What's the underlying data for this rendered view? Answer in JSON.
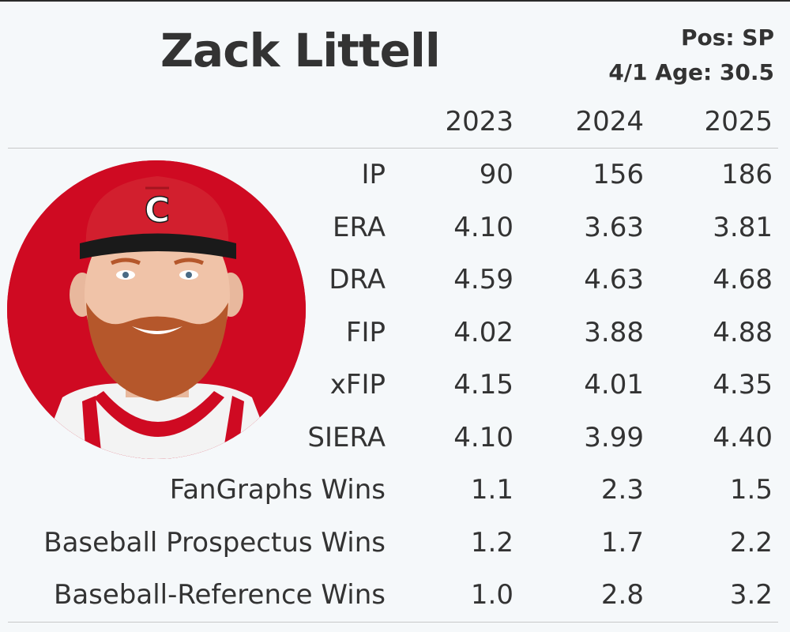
{
  "player": {
    "name": "Zack Littell",
    "position": "Pos: SP",
    "age": "4/1 Age: 30.5"
  },
  "colors": {
    "photo_background": "#cf0a22",
    "cap": "#d21f2e",
    "text": "#333333",
    "page_background": "#f5f8fa"
  },
  "table": {
    "years": [
      "2023",
      "2024",
      "2025"
    ],
    "rows": [
      {
        "label": "IP",
        "values": [
          "90",
          "156",
          "186"
        ]
      },
      {
        "label": "ERA",
        "values": [
          "4.10",
          "3.63",
          "3.81"
        ]
      },
      {
        "label": "DRA",
        "values": [
          "4.59",
          "4.63",
          "4.68"
        ]
      },
      {
        "label": "FIP",
        "values": [
          "4.02",
          "3.88",
          "4.88"
        ]
      },
      {
        "label": "xFIP",
        "values": [
          "4.15",
          "4.01",
          "4.35"
        ]
      },
      {
        "label": "SIERA",
        "values": [
          "4.10",
          "3.99",
          "4.40"
        ]
      },
      {
        "label": "FanGraphs Wins",
        "values": [
          "1.1",
          "2.3",
          "1.5"
        ]
      },
      {
        "label": "Baseball Prospectus Wins",
        "values": [
          "1.2",
          "1.7",
          "2.2"
        ]
      },
      {
        "label": "Baseball-Reference Wins",
        "values": [
          "1.0",
          "2.8",
          "3.2"
        ]
      }
    ]
  }
}
